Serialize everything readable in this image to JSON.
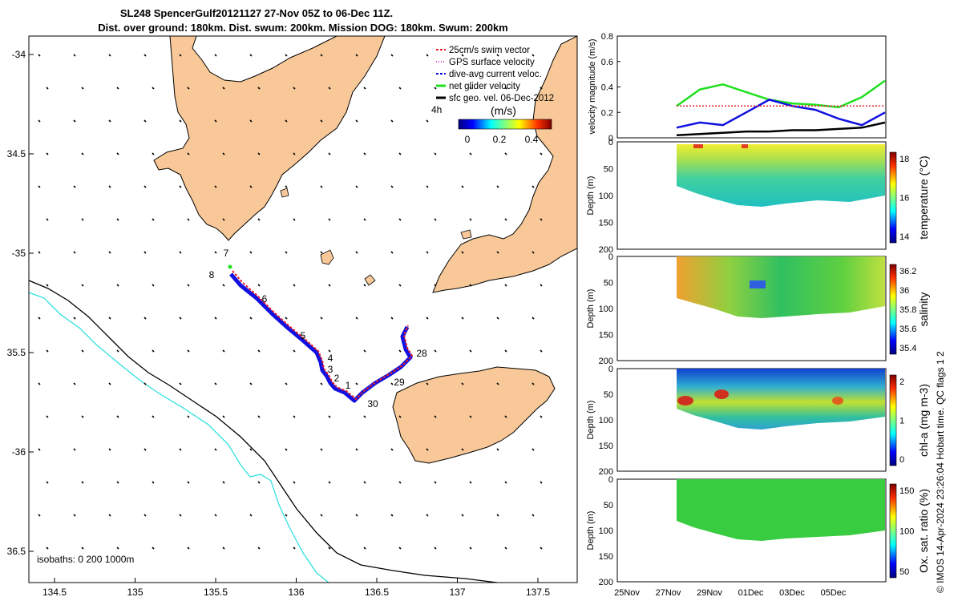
{
  "title_line1": "SL248 SpencerGulf20121127 27-Nov 05Z to 06-Dec 11Z.",
  "title_line2": "Dist. over ground: 180km. Dist. swum: 200km. Mission DOG: 180km. Swum: 200km",
  "credit": "© IMOS 14-Apr-2024 23:26:04 Hobart time. QC flags 1  2",
  "map": {
    "lon_ticks": [
      "134.5",
      "135",
      "135.5",
      "136",
      "136.5",
      "137",
      "137.5"
    ],
    "lat_ticks": [
      "-34",
      "34.5",
      "-35",
      "35.5",
      "-36",
      "36.5"
    ],
    "isobaths_label": "isobaths: 0   200  1000m",
    "vector_scale_label": "4h",
    "colorbar_label": "(m/s)",
    "colorbar_ticks": [
      "0",
      "0.2",
      "0.4"
    ],
    "legend": [
      {
        "label": "25cm/s swim vector",
        "color": "#e8202a",
        "style": "dash"
      },
      {
        "label": "GPS surface velocity",
        "color": "#e040e0",
        "style": "dot"
      },
      {
        "label": "dive-avg current veloc.",
        "color": "#1010e0",
        "style": "dash"
      },
      {
        "label": "net glider velocity",
        "color": "#20e020",
        "style": "line"
      },
      {
        "label": "sfc geo. vel. 06-Dec-2012",
        "color": "#000000",
        "style": "line"
      }
    ],
    "track_labels": [
      "7",
      "8",
      "6",
      "5",
      "4",
      "3",
      "2",
      "1",
      "30",
      "29",
      "28"
    ]
  },
  "chart_data": [
    {
      "type": "line",
      "title": "",
      "ylabel": "velocity magnitude (m/s)",
      "ylim": [
        0,
        0.8
      ],
      "yticks": [
        "0",
        "0.2",
        "0.4",
        "0.6",
        "0.8"
      ],
      "x": [
        "27-Nov",
        "28-Nov",
        "29-Nov",
        "30-Nov",
        "01-Dec",
        "02-Dec",
        "03-Dec",
        "04-Dec",
        "05-Dec",
        "06-Dec"
      ],
      "series": [
        {
          "color": "#20e020",
          "values": [
            0.25,
            0.38,
            0.42,
            0.36,
            0.3,
            0.27,
            0.26,
            0.24,
            0.32,
            0.45
          ]
        },
        {
          "color": "#1010e0",
          "values": [
            0.08,
            0.12,
            0.1,
            0.2,
            0.3,
            0.25,
            0.22,
            0.15,
            0.1,
            0.2
          ]
        },
        {
          "color": "#e8202a",
          "values": [
            0.25,
            0.25,
            0.25,
            0.25,
            0.25,
            0.25,
            0.25,
            0.25,
            0.25,
            0.25
          ]
        },
        {
          "color": "#000000",
          "values": [
            0.02,
            0.03,
            0.04,
            0.05,
            0.05,
            0.06,
            0.06,
            0.07,
            0.08,
            0.12
          ]
        }
      ]
    },
    {
      "type": "heatmap",
      "ylabel": "Depth (m)",
      "yticks": [
        "0",
        "50",
        "100",
        "150",
        "200"
      ],
      "colorbar_label": "temperature (°C)",
      "colorbar_ticks": [
        "18",
        "16",
        "14"
      ]
    },
    {
      "type": "heatmap",
      "ylabel": "Depth (m)",
      "yticks": [
        "0",
        "50",
        "100",
        "150",
        "200"
      ],
      "colorbar_label": "salinity",
      "colorbar_ticks": [
        "36.2",
        "36",
        "35.8",
        "35.6",
        "35.4"
      ]
    },
    {
      "type": "heatmap",
      "ylabel": "Depth (m)",
      "yticks": [
        "0",
        "50",
        "100",
        "150",
        "200"
      ],
      "colorbar_label": "chl-a (mg m-3)",
      "colorbar_ticks": [
        "2",
        "1",
        "0"
      ]
    },
    {
      "type": "heatmap",
      "ylabel": "Depth (m)",
      "yticks": [
        "0",
        "50",
        "100",
        "150",
        "200"
      ],
      "colorbar_label": "Ox. sat. ratio (%)",
      "colorbar_ticks": [
        "150",
        "100",
        "50"
      ],
      "xticks": [
        "25Nov",
        "27Nov",
        "29Nov",
        "01Dec",
        "03Dec",
        "05Dec"
      ]
    }
  ]
}
